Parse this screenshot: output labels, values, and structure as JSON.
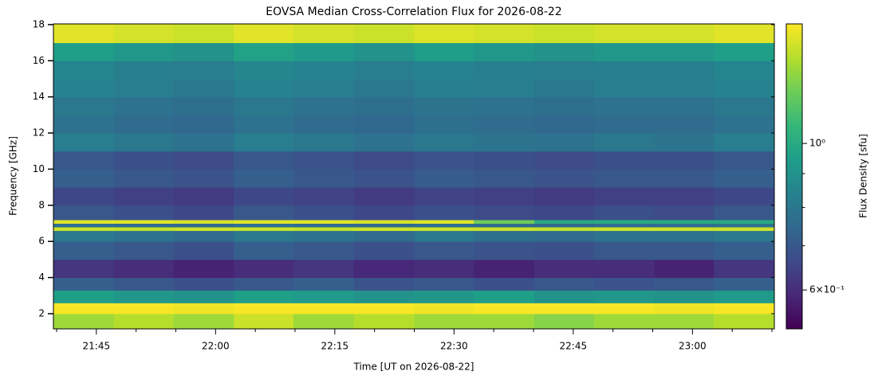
{
  "chart_data": {
    "type": "heatmap",
    "title": "EOVSA Median Cross-Correlation Flux for 2026-08-22",
    "x_label": "Time [UT on 2026-08-22]",
    "y_label": "Frequency [GHz]",
    "colorbar_label": "Flux Density [sfu]",
    "colormap": "viridis",
    "color_scale": "log",
    "xlim": [
      1299.6,
      1390.3
    ],
    "xticks": [
      {
        "value": 1305,
        "label": "21:45"
      },
      {
        "value": 1320,
        "label": "22:00"
      },
      {
        "value": 1335,
        "label": "22:15"
      },
      {
        "value": 1350,
        "label": "22:30"
      },
      {
        "value": 1365,
        "label": "22:45"
      },
      {
        "value": 1380,
        "label": "23:00"
      }
    ],
    "xminorticks": [
      1300,
      1310,
      1315,
      1325,
      1330,
      1340,
      1345,
      1355,
      1360,
      1370,
      1375,
      1385,
      1390
    ],
    "ylim": [
      1.16,
      18.04
    ],
    "yticks": [
      2,
      4,
      6,
      8,
      10,
      12,
      14,
      16,
      18
    ],
    "clim": [
      0.524,
      1.517
    ],
    "cticks": [
      {
        "value": 1,
        "label": "10⁰"
      },
      {
        "value": 0.6,
        "label": "6×10⁻¹"
      }
    ],
    "cminorticks": [
      0.7,
      0.8,
      0.9
    ],
    "xbins": [
      1299.6,
      1307.2,
      1314.7,
      1322.3,
      1329.8,
      1337.4,
      1345.0,
      1352.5,
      1360.1,
      1367.6,
      1375.2,
      1382.7,
      1390.3
    ],
    "ybins": [
      1.16,
      2,
      2.6,
      3.3,
      4,
      5,
      6,
      6.6,
      6.8,
      7,
      7.2,
      8,
      9,
      10,
      11,
      12,
      13,
      14,
      15,
      16,
      17,
      18.04
    ],
    "z": [
      [
        1.3,
        1.35,
        1.3,
        1.4,
        1.3,
        1.35,
        1.3,
        1.3,
        1.25,
        1.3,
        1.3,
        1.35
      ],
      [
        1.5,
        1.5,
        1.48,
        1.5,
        1.5,
        1.5,
        1.48,
        1.5,
        1.5,
        1.5,
        1.48,
        1.5
      ],
      [
        0.95,
        0.92,
        0.9,
        0.95,
        0.93,
        0.9,
        0.92,
        0.95,
        0.9,
        0.92,
        0.9,
        0.93
      ],
      [
        0.72,
        0.7,
        0.68,
        0.7,
        0.72,
        0.69,
        0.7,
        0.68,
        0.7,
        0.69,
        0.7,
        0.72
      ],
      [
        0.62,
        0.6,
        0.58,
        0.6,
        0.62,
        0.59,
        0.6,
        0.58,
        0.6,
        0.6,
        0.58,
        0.62
      ],
      [
        0.72,
        0.7,
        0.68,
        0.72,
        0.7,
        0.68,
        0.7,
        0.69,
        0.68,
        0.7,
        0.7,
        0.72
      ],
      [
        0.8,
        0.78,
        0.76,
        0.8,
        0.78,
        0.76,
        0.8,
        0.77,
        0.76,
        0.78,
        0.78,
        0.8
      ],
      [
        1.4,
        1.38,
        1.4,
        1.4,
        1.38,
        1.4,
        1.4,
        1.4,
        1.38,
        1.4,
        1.4,
        1.4
      ],
      [
        0.78,
        0.76,
        0.75,
        0.78,
        0.76,
        0.75,
        0.77,
        0.76,
        0.75,
        0.76,
        0.76,
        0.78
      ],
      [
        1.45,
        1.45,
        1.42,
        1.45,
        1.45,
        1.42,
        1.45,
        1.2,
        1.0,
        1.0,
        1.0,
        1.0
      ],
      [
        0.7,
        0.68,
        0.66,
        0.7,
        0.68,
        0.66,
        0.68,
        0.67,
        0.66,
        0.68,
        0.67,
        0.7
      ],
      [
        0.66,
        0.64,
        0.63,
        0.66,
        0.65,
        0.63,
        0.65,
        0.64,
        0.63,
        0.64,
        0.64,
        0.66
      ],
      [
        0.72,
        0.7,
        0.69,
        0.72,
        0.7,
        0.69,
        0.71,
        0.7,
        0.69,
        0.7,
        0.7,
        0.72
      ],
      [
        0.7,
        0.68,
        0.67,
        0.7,
        0.69,
        0.67,
        0.69,
        0.68,
        0.67,
        0.68,
        0.68,
        0.7
      ],
      [
        0.82,
        0.8,
        0.78,
        0.82,
        0.8,
        0.78,
        0.8,
        0.79,
        0.78,
        0.8,
        0.79,
        0.82
      ],
      [
        0.78,
        0.76,
        0.75,
        0.78,
        0.76,
        0.75,
        0.77,
        0.76,
        0.75,
        0.76,
        0.76,
        0.78
      ],
      [
        0.8,
        0.78,
        0.77,
        0.8,
        0.78,
        0.77,
        0.79,
        0.78,
        0.77,
        0.78,
        0.78,
        0.8
      ],
      [
        0.84,
        0.82,
        0.8,
        0.84,
        0.82,
        0.8,
        0.83,
        0.82,
        0.8,
        0.82,
        0.82,
        0.84
      ],
      [
        0.85,
        0.83,
        0.82,
        0.86,
        0.84,
        0.82,
        0.84,
        0.83,
        0.82,
        0.83,
        0.83,
        0.85
      ],
      [
        0.95,
        0.92,
        0.9,
        0.96,
        0.93,
        0.9,
        0.94,
        0.92,
        0.9,
        0.92,
        0.92,
        0.95
      ],
      [
        1.45,
        1.42,
        1.4,
        1.45,
        1.42,
        1.4,
        1.44,
        1.42,
        1.4,
        1.42,
        1.42,
        1.45
      ]
    ]
  }
}
